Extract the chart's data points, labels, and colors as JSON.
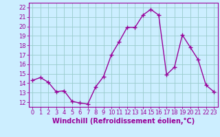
{
  "x": [
    0,
    1,
    2,
    3,
    4,
    5,
    6,
    7,
    8,
    9,
    10,
    11,
    12,
    13,
    14,
    15,
    16,
    17,
    18,
    19,
    20,
    21,
    22,
    23
  ],
  "y": [
    14.3,
    14.6,
    14.1,
    13.1,
    13.2,
    12.1,
    11.9,
    11.8,
    13.6,
    14.7,
    17.0,
    18.4,
    19.9,
    19.9,
    21.2,
    21.8,
    21.2,
    14.9,
    15.7,
    19.1,
    17.8,
    16.5,
    13.8,
    13.1
  ],
  "line_color": "#990099",
  "marker": "+",
  "marker_size": 4,
  "line_width": 1.0,
  "bg_color": "#cceeff",
  "grid_color": "#99cccc",
  "xlabel": "Windchill (Refroidissement éolien,°C)",
  "ylabel_ticks": [
    12,
    13,
    14,
    15,
    16,
    17,
    18,
    19,
    20,
    21,
    22
  ],
  "ylim": [
    11.5,
    22.5
  ],
  "xlim": [
    -0.5,
    23.5
  ],
  "xticks": [
    0,
    1,
    2,
    3,
    4,
    5,
    6,
    7,
    8,
    9,
    10,
    11,
    12,
    13,
    14,
    15,
    16,
    17,
    18,
    19,
    20,
    21,
    22,
    23
  ],
  "xlabel_fontsize": 7,
  "tick_fontsize": 6,
  "tick_color": "#990099",
  "spine_color": "#990099"
}
